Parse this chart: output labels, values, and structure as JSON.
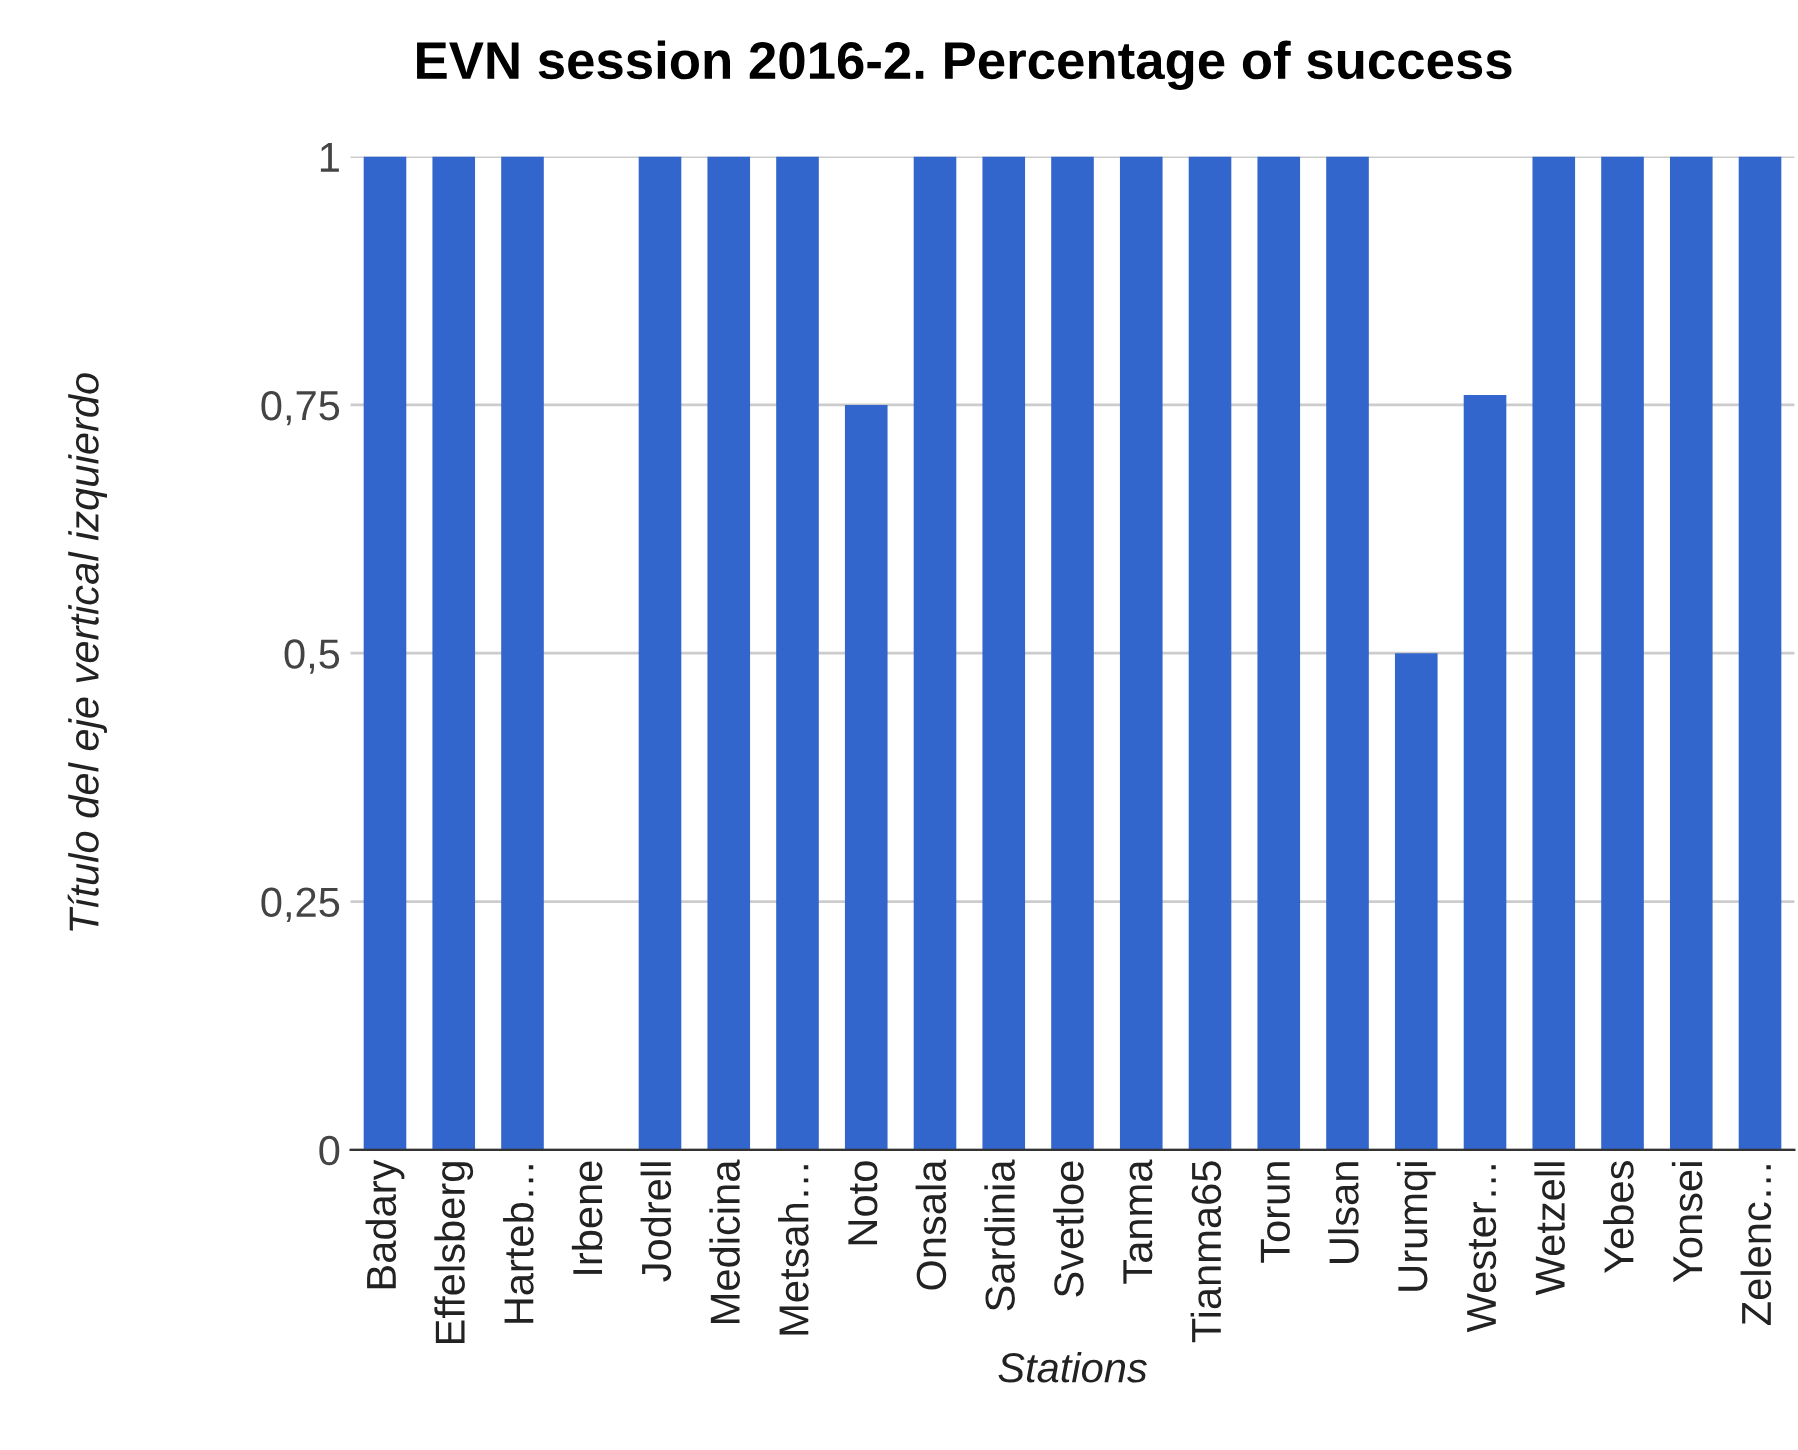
{
  "chart_data": {
    "type": "bar",
    "title": "EVN session 2016-2. Percentage of success",
    "xlabel": "Stations",
    "ylabel": "Título del eje vertical izquierdo",
    "categories": [
      "Badary",
      "Effelsberg",
      "Harteb…",
      "Irbene",
      "Jodrell",
      "Medicina",
      "Metsah…",
      "Noto",
      "Onsala",
      "Sardinia",
      "Svetloe",
      "Tanma",
      "Tianma65",
      "Torun",
      "Ulsan",
      "Urumqi",
      "Wester…",
      "Wetzell",
      "Yebes",
      "Yonsei",
      "Zelenc…"
    ],
    "values": [
      1,
      1,
      1,
      0,
      1,
      1,
      1,
      0.75,
      1,
      1,
      1,
      1,
      1,
      1,
      1,
      0.5,
      0.76,
      1,
      1,
      1,
      1
    ],
    "color": "#3366cc",
    "ylim": [
      0,
      1
    ],
    "yticks": [
      {
        "value": 0,
        "label": "0"
      },
      {
        "value": 0.25,
        "label": "0,25"
      },
      {
        "value": 0.5,
        "label": "0,5"
      },
      {
        "value": 0.75,
        "label": "0,75"
      },
      {
        "value": 1,
        "label": "1"
      }
    ],
    "grid": "y"
  }
}
